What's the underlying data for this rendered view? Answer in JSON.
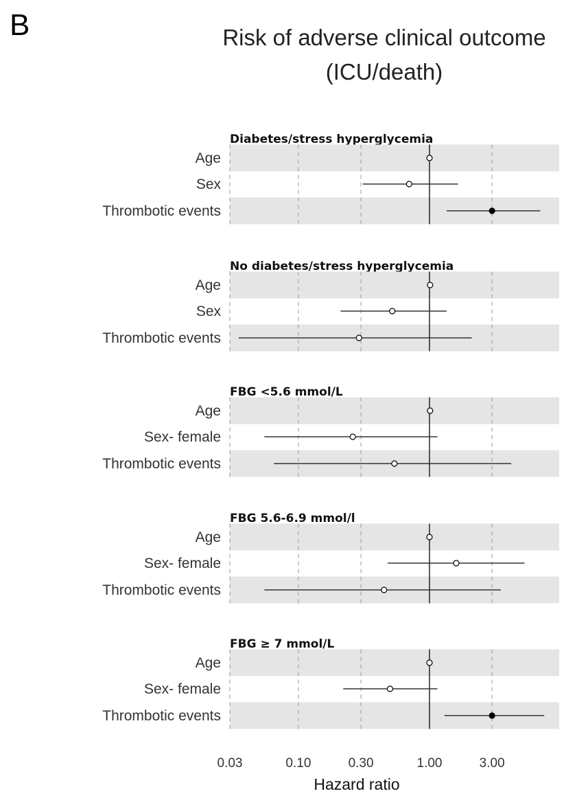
{
  "panel_label": "B",
  "title_line1": "Risk of adverse clinical outcome",
  "title_line2": "(ICU/death)",
  "chart_data": {
    "type": "forest",
    "x_scale": "log",
    "xlabel": "Hazard ratio",
    "xlim": [
      0.03,
      8
    ],
    "ticks": [
      0.03,
      0.1,
      0.3,
      1.0,
      3.0
    ],
    "tick_labels": [
      "0.03",
      "0.10",
      "0.30",
      "1.00",
      "3.00"
    ],
    "reference_line": 1.0,
    "groups": [
      {
        "title": "Diabetes/stress hyperglycemia",
        "rows": [
          {
            "label": "Age",
            "hr": 1.0,
            "lo": 1.0,
            "hi": 1.0,
            "filled": false
          },
          {
            "label": "Sex",
            "hr": 0.7,
            "lo": 0.31,
            "hi": 1.65,
            "filled": false
          },
          {
            "label": "Thrombotic events",
            "hr": 3.0,
            "lo": 1.35,
            "hi": 7.0,
            "filled": true
          }
        ]
      },
      {
        "title": "No diabetes/stress hyperglycemia",
        "rows": [
          {
            "label": "Age",
            "hr": 1.01,
            "lo": 1.01,
            "hi": 1.01,
            "filled": false
          },
          {
            "label": "Sex",
            "hr": 0.52,
            "lo": 0.21,
            "hi": 1.35,
            "filled": false
          },
          {
            "label": "Thrombotic events",
            "hr": 0.29,
            "lo": 0.035,
            "hi": 2.1,
            "filled": false
          }
        ]
      },
      {
        "title": "FBG <5.6 mmol/L",
        "rows": [
          {
            "label": "Age",
            "hr": 1.01,
            "lo": 1.01,
            "hi": 1.01,
            "filled": false
          },
          {
            "label": "Sex- female",
            "hr": 0.26,
            "lo": 0.055,
            "hi": 1.15,
            "filled": false
          },
          {
            "label": "Thrombotic events",
            "hr": 0.54,
            "lo": 0.065,
            "hi": 4.2,
            "filled": false
          }
        ]
      },
      {
        "title": "FBG 5.6-6.9 mmol/l",
        "rows": [
          {
            "label": "Age",
            "hr": 1.0,
            "lo": 1.0,
            "hi": 1.0,
            "filled": false
          },
          {
            "label": "Sex- female",
            "hr": 1.6,
            "lo": 0.48,
            "hi": 5.3,
            "filled": false
          },
          {
            "label": "Thrombotic events",
            "hr": 0.45,
            "lo": 0.055,
            "hi": 3.5,
            "filled": false
          }
        ]
      },
      {
        "title": "FBG ≥ 7 mmol/L",
        "rows": [
          {
            "label": "Age",
            "hr": 1.0,
            "lo": 1.0,
            "hi": 1.0,
            "filled": false
          },
          {
            "label": "Sex- female",
            "hr": 0.5,
            "lo": 0.22,
            "hi": 1.15,
            "filled": false
          },
          {
            "label": "Thrombotic events",
            "hr": 3.0,
            "lo": 1.3,
            "hi": 7.5,
            "filled": true
          }
        ]
      }
    ]
  }
}
